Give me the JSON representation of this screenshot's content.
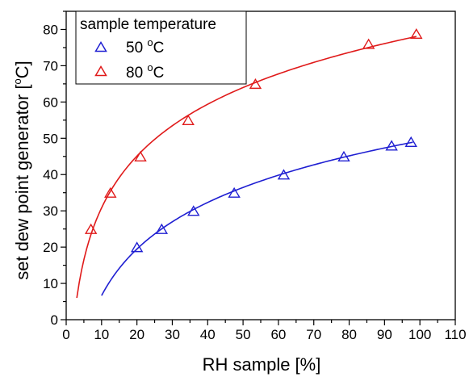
{
  "chart_data": {
    "type": "scatter",
    "title": "",
    "xlabel": "RH sample [%]",
    "ylabel_parts": {
      "before": "set dew point generator [",
      "sup": "o",
      "after": "C]"
    },
    "xlim": [
      0,
      110
    ],
    "ylim": [
      0,
      85
    ],
    "x_ticks": [
      "0",
      "10",
      "20",
      "30",
      "40",
      "50",
      "60",
      "70",
      "80",
      "90",
      "100",
      "110"
    ],
    "y_ticks": [
      "0",
      "10",
      "20",
      "30",
      "40",
      "50",
      "60",
      "70",
      "80"
    ],
    "grid": false,
    "legend": {
      "title": "sample temperature",
      "placement": "top-left"
    },
    "series": [
      {
        "name_parts": {
          "before": "50 ",
          "sup": "o",
          "after": "C"
        },
        "color": "#1f1fd2",
        "marker": "open-triangle",
        "points": [
          {
            "x": 20,
            "y": 20
          },
          {
            "x": 27,
            "y": 25
          },
          {
            "x": 36,
            "y": 30
          },
          {
            "x": 47.5,
            "y": 35
          },
          {
            "x": 61.5,
            "y": 40
          },
          {
            "x": 78.5,
            "y": 45
          },
          {
            "x": 92,
            "y": 48
          },
          {
            "x": 97.5,
            "y": 49
          }
        ],
        "fit": {
          "x_start": 10,
          "x_end": 98
        }
      },
      {
        "name_parts": {
          "before": "80 ",
          "sup": "o",
          "after": "C"
        },
        "color": "#e01a1a",
        "marker": "open-triangle",
        "points": [
          {
            "x": 7,
            "y": 25
          },
          {
            "x": 12.5,
            "y": 35
          },
          {
            "x": 21,
            "y": 45
          },
          {
            "x": 34.5,
            "y": 55
          },
          {
            "x": 53.5,
            "y": 65
          },
          {
            "x": 85.5,
            "y": 76
          },
          {
            "x": 99,
            "y": 78.8
          }
        ],
        "fit": {
          "x_start": 3,
          "x_end": 99
        }
      }
    ]
  }
}
